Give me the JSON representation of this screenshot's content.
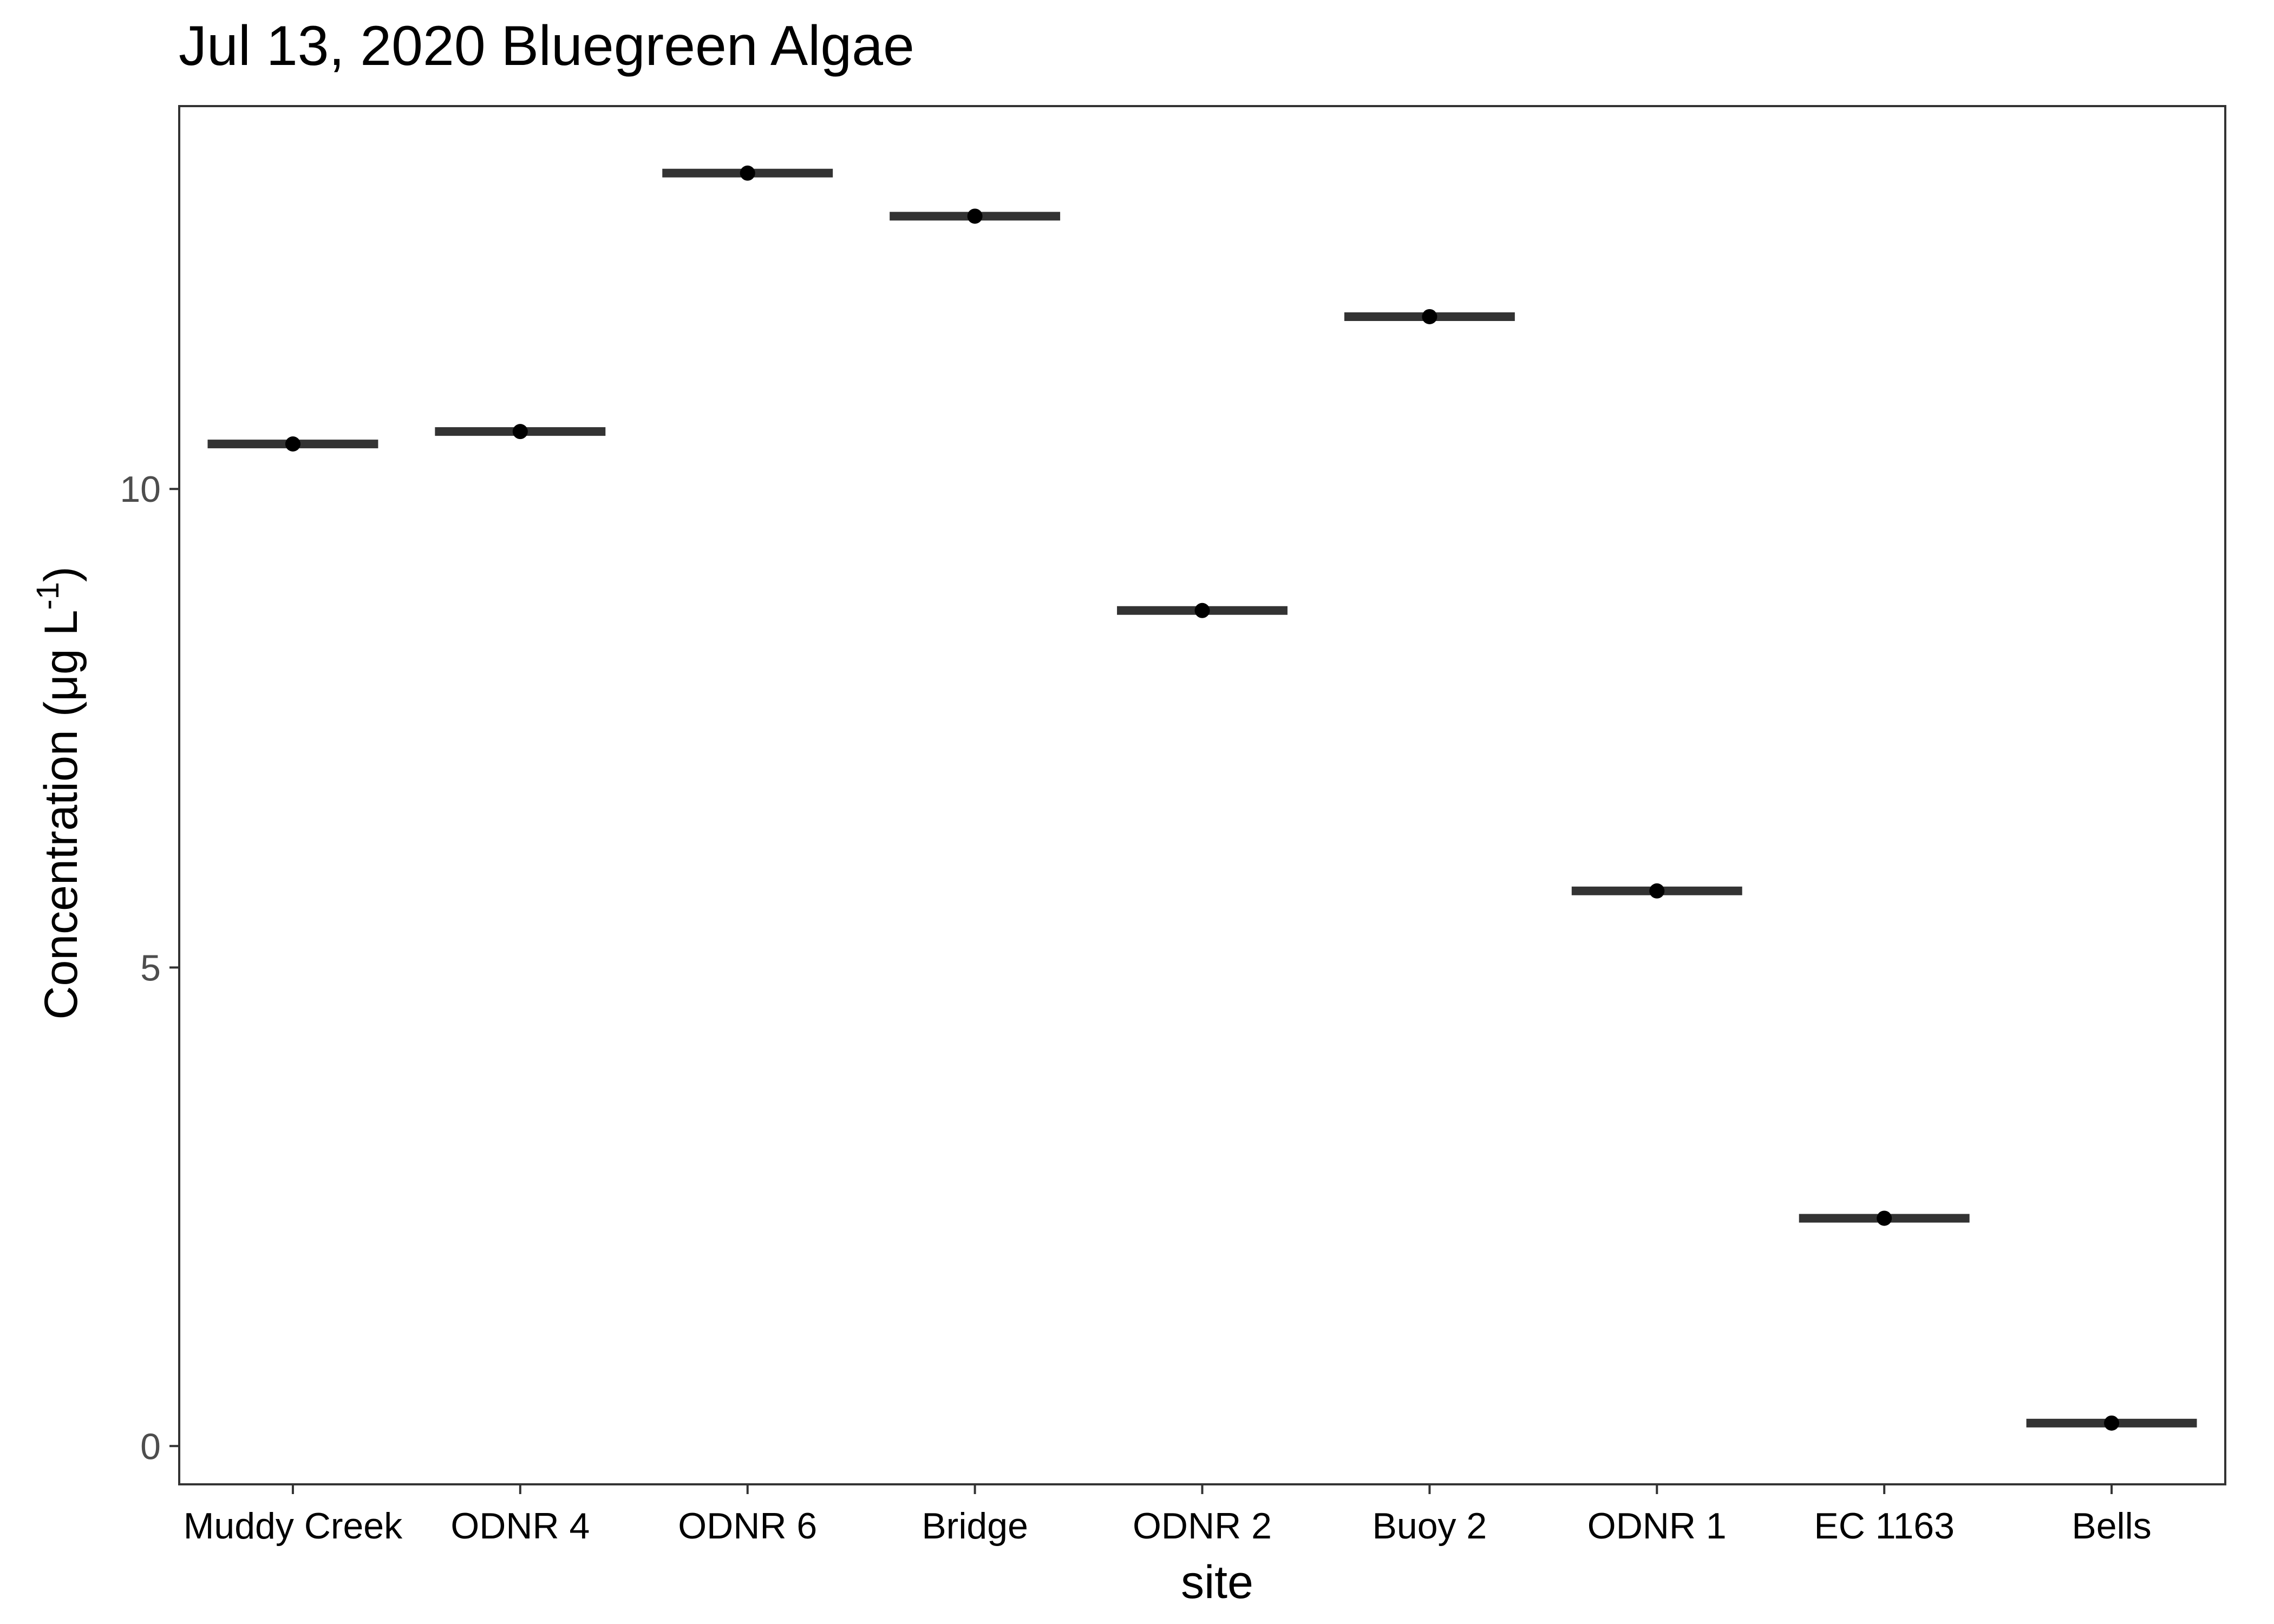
{
  "chart_data": {
    "type": "scatter",
    "title": "Jul 13, 2020 Bluegreen Algae",
    "xlabel": "site",
    "ylabel": {
      "prefix": "Concentration (μg L",
      "superscript": "-1",
      "suffix": ")"
    },
    "categories": [
      "Muddy Creek",
      "ODNR 4",
      "ODNR 6",
      "Bridge",
      "ODNR 2",
      "Buoy 2",
      "ODNR 1",
      "EC 1163",
      "Bells"
    ],
    "values": [
      10.47,
      10.6,
      13.3,
      12.85,
      8.73,
      11.8,
      5.8,
      2.38,
      0.24
    ],
    "ylim": [
      -0.4,
      14.0
    ],
    "yticks": [
      0,
      5,
      10
    ],
    "ytick_labels": [
      "0",
      "5",
      "10"
    ],
    "grid": false,
    "legend": "none",
    "colors": {
      "point": "#000000",
      "median_bar": "#333333",
      "panel_border": "#333333",
      "tick": "#333333"
    }
  }
}
